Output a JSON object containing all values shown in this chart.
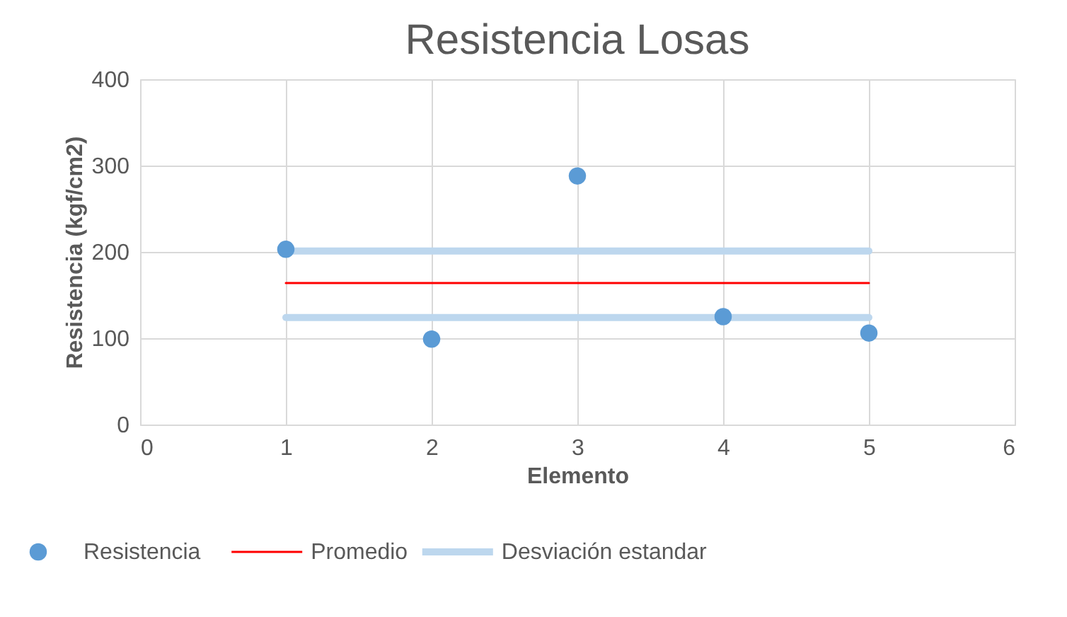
{
  "chart_data": {
    "type": "scatter",
    "title": "Resistencia Losas",
    "xlabel": "Elemento",
    "ylabel": "Resistencia (kgf/cm2)",
    "xlim": [
      0,
      6
    ],
    "xticks": [
      0,
      1,
      2,
      3,
      4,
      5,
      6
    ],
    "ylim": [
      0,
      400
    ],
    "yticks": [
      0,
      100,
      200,
      300,
      400
    ],
    "grid": true,
    "legend": "bottom",
    "marker": "circle",
    "series": [
      {
        "name": "Resistencia",
        "color": "#5b9bd5",
        "x": [
          1,
          2,
          3,
          4,
          5
        ],
        "values": [
          203,
          99,
          288,
          125,
          106
        ]
      },
      {
        "name": "Promedio",
        "type": "line",
        "marker": "none",
        "color": "#ff0000",
        "x": [
          1,
          5
        ],
        "values": [
          164,
          164
        ]
      },
      {
        "name": "Desviación estandar",
        "type": "line",
        "marker": "none",
        "color": "#bdd7ee",
        "x": [
          1,
          5
        ],
        "values": [
          201,
          201
        ]
      },
      {
        "type": "line",
        "marker": "none",
        "color": "#bdd7ee",
        "x": [
          1,
          5
        ],
        "values": [
          124,
          124
        ]
      }
    ]
  }
}
